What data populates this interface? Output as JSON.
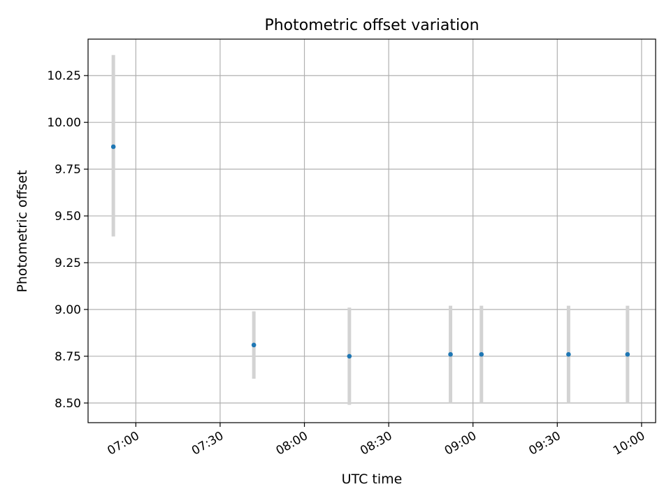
{
  "chart_data": {
    "type": "scatter",
    "title": "Photometric offset variation",
    "xlabel": "UTC time",
    "ylabel": "Photometric offset",
    "x_ticks": [
      "07:00",
      "07:30",
      "08:00",
      "08:30",
      "09:00",
      "09:30",
      "10:00"
    ],
    "y_ticks": [
      "8.50",
      "8.75",
      "9.00",
      "9.25",
      "9.50",
      "9.75",
      "10.00",
      "10.25"
    ],
    "xlim": [
      "06:43",
      "10:05"
    ],
    "ylim": [
      8.395,
      10.445
    ],
    "grid": true,
    "legend": "none",
    "points": [
      {
        "x": "06:52",
        "y": 9.87,
        "y_low": 9.39,
        "y_high": 10.36
      },
      {
        "x": "07:42",
        "y": 8.81,
        "y_low": 8.63,
        "y_high": 8.99
      },
      {
        "x": "08:16",
        "y": 8.75,
        "y_low": 8.49,
        "y_high": 9.01
      },
      {
        "x": "08:52",
        "y": 8.76,
        "y_low": 8.5,
        "y_high": 9.02
      },
      {
        "x": "09:03",
        "y": 8.76,
        "y_low": 8.5,
        "y_high": 9.02
      },
      {
        "x": "09:34",
        "y": 8.76,
        "y_low": 8.5,
        "y_high": 9.02
      },
      {
        "x": "09:55",
        "y": 8.76,
        "y_low": 8.5,
        "y_high": 9.02
      }
    ],
    "colors": {
      "marker": "#1f77b4",
      "errorbar": "#d3d3d3",
      "grid": "#b0b0b0"
    }
  }
}
